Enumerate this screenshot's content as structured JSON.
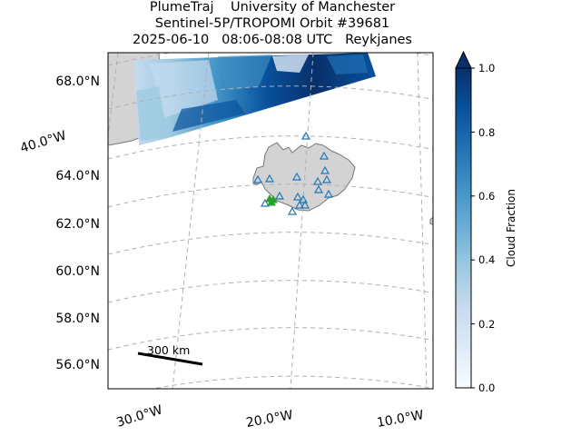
{
  "title": {
    "line1": "PlumeTraj    University of Manchester",
    "line2": "Sentinel-5P/TROPOMI Orbit #39681",
    "line3": "2025-06-10   08:06-08:08 UTC   Reykjanes"
  },
  "map": {
    "lat_labels": [
      "68.0°N",
      "64.0°N",
      "62.0°N",
      "60.0°N",
      "58.0°N",
      "56.0°N"
    ],
    "lon_labels": [
      "40.0°W",
      "30.0°W",
      "20.0°W",
      "10.0°W"
    ],
    "scale_bar_label": "300 km",
    "land_color": "#d3d3d3",
    "coast_color": "#777777",
    "gridline_color": "#b0b0b0"
  },
  "colorbar": {
    "label": "Cloud Fraction",
    "colormap": "Blues",
    "ticks": [
      "0.0",
      "0.2",
      "0.4",
      "0.6",
      "0.8",
      "1.0"
    ],
    "range": [
      0.0,
      1.0
    ],
    "extend": "max"
  },
  "markers": {
    "volcano_marker_color": "#2ca02c",
    "station_marker_color": "#1f77b4",
    "volcano_marker_shape": "triangle",
    "station_marker_shape": "hollow-triangle"
  }
}
